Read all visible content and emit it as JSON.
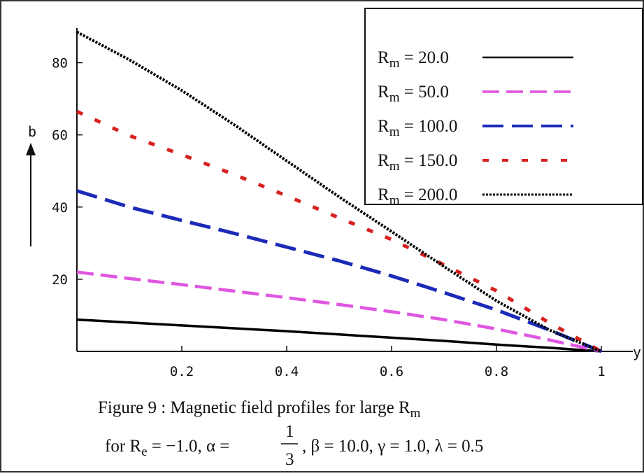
{
  "chart_data": {
    "type": "line",
    "xlabel": "y",
    "ylabel": "b",
    "xlim": [
      0,
      1
    ],
    "ylim": [
      0,
      90
    ],
    "x_ticks": [
      {
        "value": 0.2,
        "label": "0.2"
      },
      {
        "value": 0.4,
        "label": "0.4"
      },
      {
        "value": 0.6,
        "label": "0.6"
      },
      {
        "value": 0.8,
        "label": "0.8"
      },
      {
        "value": 1.0,
        "label": "1"
      }
    ],
    "y_ticks": [
      {
        "value": 20,
        "label": "20"
      },
      {
        "value": 40,
        "label": "40"
      },
      {
        "value": 60,
        "label": "60"
      },
      {
        "value": 80,
        "label": "80"
      }
    ],
    "x": [
      0.0,
      0.1,
      0.2,
      0.3,
      0.4,
      0.5,
      0.6,
      0.7,
      0.8,
      0.9,
      1.0
    ],
    "series": [
      {
        "name": "R_m = 20.0",
        "sub": "m",
        "value_text": " = 20.0",
        "color": "#000000",
        "dash": "none",
        "width": 3.5,
        "values": [
          8.8,
          8.0,
          7.2,
          6.4,
          5.6,
          4.7,
          3.8,
          2.9,
          1.9,
          1.0,
          0.0
        ]
      },
      {
        "name": "R_m = 50.0",
        "sub": "m",
        "value_text": " = 50.0",
        "color": "#e055e0",
        "dash": "24 10",
        "width": 4.5,
        "values": [
          22.0,
          20.2,
          18.5,
          16.7,
          14.9,
          13.0,
          11.0,
          8.8,
          6.2,
          3.2,
          0.0
        ]
      },
      {
        "name": "R_m = 100.0",
        "sub": "m",
        "value_text": " = 100.0",
        "color": "#1c2ab8",
        "dash": "30 12",
        "width": 5,
        "values": [
          44.5,
          40.0,
          36.3,
          32.7,
          28.9,
          25.1,
          20.9,
          16.3,
          11.5,
          6.0,
          0.0
        ]
      },
      {
        "name": "R_m = 150.0",
        "sub": "m",
        "value_text": " = 150.0",
        "color": "#d82020",
        "dash": "9 19",
        "width": 5,
        "values": [
          66.5,
          59.8,
          54.5,
          49.0,
          43.1,
          37.0,
          31.0,
          24.0,
          16.8,
          8.0,
          0.0
        ]
      },
      {
        "name": "R_m = 200.0",
        "sub": "m",
        "value_text": " = 200.0",
        "color": "#000000",
        "dash": "3 2",
        "width": 4,
        "values": [
          88.5,
          80.8,
          72.3,
          62.8,
          52.8,
          42.8,
          33.2,
          23.5,
          14.0,
          6.0,
          0.0
        ]
      }
    ]
  },
  "legend": {
    "prefix": "R"
  },
  "caption": {
    "line1": "Figure 9 :  Magnetic field profiles for large R",
    "line1_sub": "m",
    "line2_a": "for R",
    "line2_a_sub": "e",
    "line2_b": " = −1.0,  α = ",
    "frac_num": "1",
    "frac_den": "3",
    "line2_c": ",  β = 10.0,  γ = 1.0,  λ = 0.5"
  }
}
